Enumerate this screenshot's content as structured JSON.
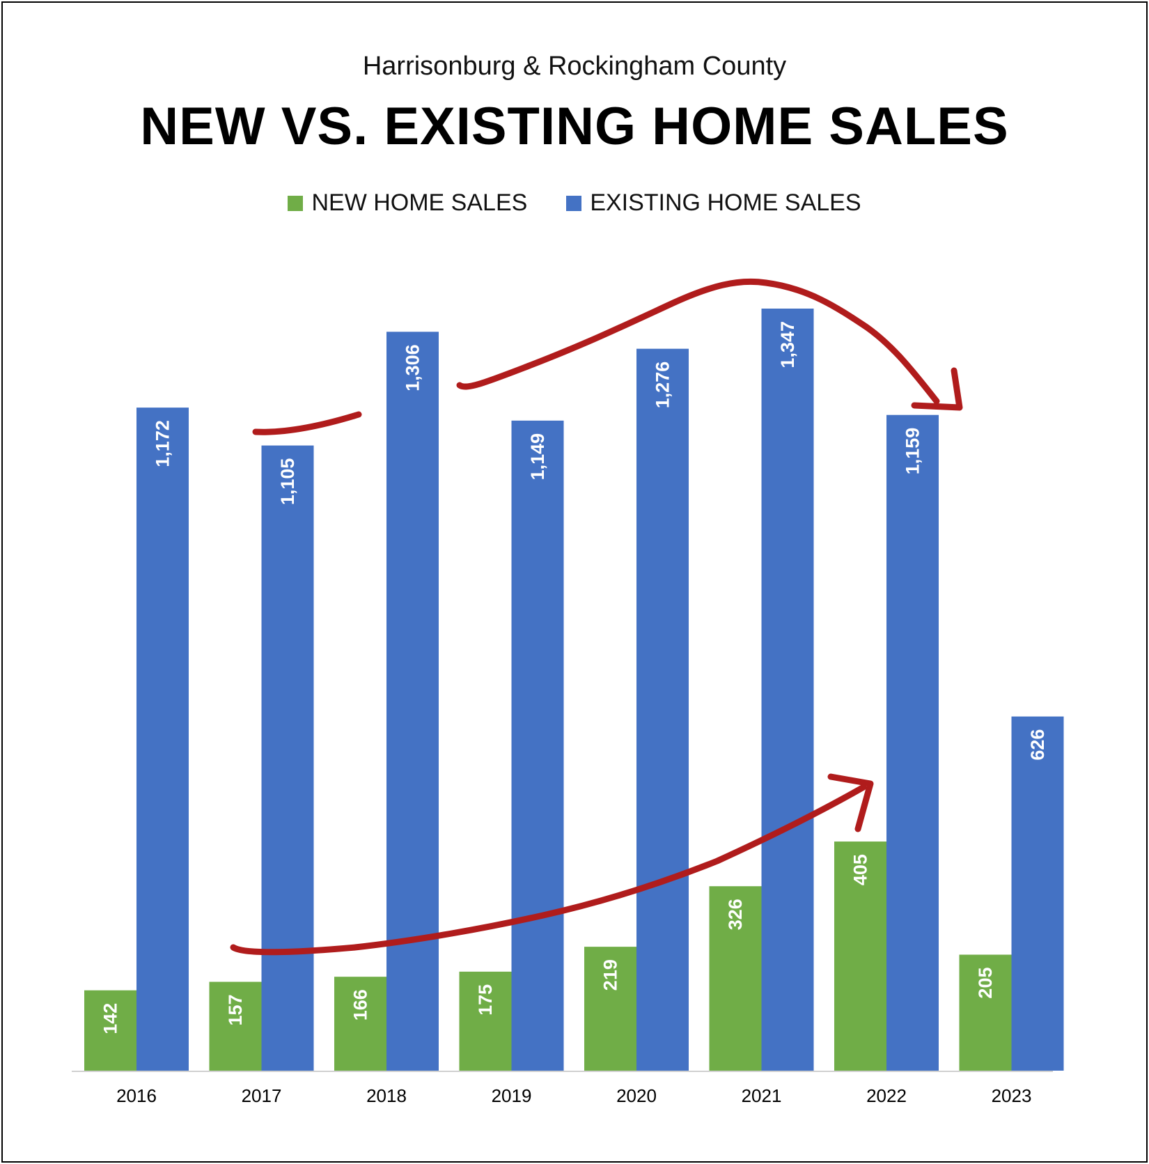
{
  "chart_data": {
    "type": "bar",
    "subtitle": "Harrisonburg & Rockingham County",
    "title": "NEW VS. EXISTING HOME SALES",
    "categories": [
      "2016",
      "2017",
      "2018",
      "2019",
      "2020",
      "2021",
      "2022",
      "2023"
    ],
    "series": [
      {
        "name": "NEW HOME SALES",
        "color": "#70ad47",
        "values": [
          142,
          157,
          166,
          175,
          219,
          326,
          405,
          205
        ],
        "labels": [
          "142",
          "157",
          "166",
          "175",
          "219",
          "326",
          "405",
          "205"
        ]
      },
      {
        "name": "EXISTING HOME SALES",
        "color": "#4472c4",
        "values": [
          1172,
          1105,
          1306,
          1149,
          1276,
          1347,
          1159,
          626
        ],
        "labels": [
          "1,172",
          "1,105",
          "1,306",
          "1,149",
          "1,276",
          "1,347",
          "1,159",
          "626"
        ]
      }
    ],
    "ylim": [
      0,
      1400
    ],
    "grid": false,
    "legend_position": "top-center",
    "annotation_color": "#b01c1c"
  }
}
